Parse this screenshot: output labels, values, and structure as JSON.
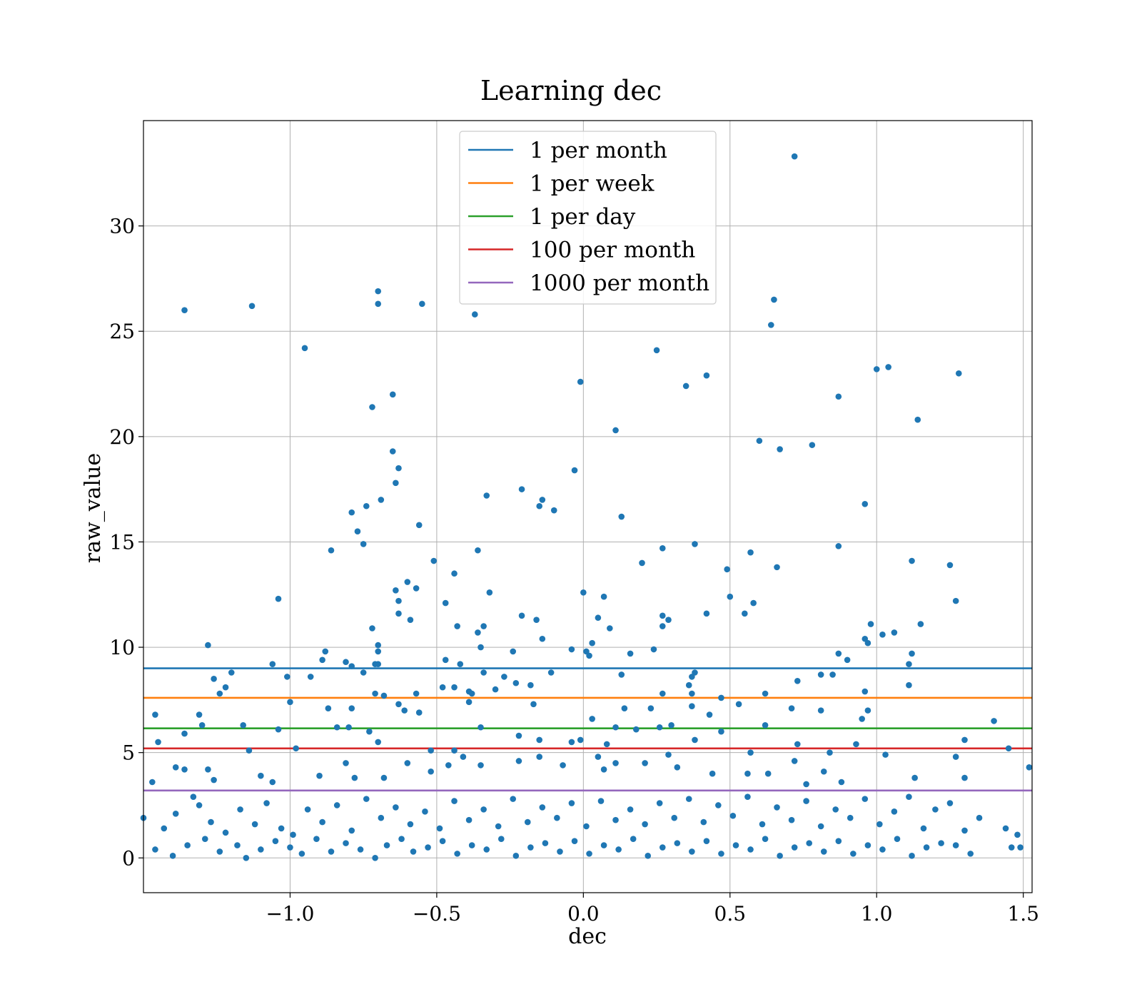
{
  "chart_data": {
    "type": "scatter",
    "title": "Learning dec",
    "xlabel": "dec",
    "ylabel": "raw_value",
    "xlim": [
      -1.5,
      1.53
    ],
    "ylim": [
      -1.65,
      35.0
    ],
    "grid": true,
    "legend_position": "top-center",
    "x_ticks": [
      -1.0,
      -0.5,
      0.0,
      0.5,
      1.0,
      1.5
    ],
    "x_tick_labels": [
      "−1.0",
      "−0.5",
      "0.0",
      "0.5",
      "1.0",
      "1.5"
    ],
    "y_ticks": [
      0,
      5,
      10,
      15,
      20,
      25,
      30
    ],
    "y_tick_labels": [
      "0",
      "5",
      "10",
      "15",
      "20",
      "25",
      "30"
    ],
    "point_color": "#1f77b4",
    "reference_lines": [
      {
        "name": "1 per month",
        "y": 9.0,
        "color": "#1f77b4"
      },
      {
        "name": "1 per week",
        "y": 7.6,
        "color": "#ff7f0e"
      },
      {
        "name": "1 per day",
        "y": 6.15,
        "color": "#2ca02c"
      },
      {
        "name": "100 per month",
        "y": 5.2,
        "color": "#d62728"
      },
      {
        "name": "1000 per month",
        "y": 3.2,
        "color": "#9467bd"
      }
    ],
    "points": [
      [
        -1.36,
        26.0
      ],
      [
        -1.13,
        26.2
      ],
      [
        -0.7,
        26.9
      ],
      [
        -0.7,
        26.3
      ],
      [
        -0.55,
        26.3
      ],
      [
        -0.37,
        25.8
      ],
      [
        -0.95,
        24.2
      ],
      [
        0.25,
        24.1
      ],
      [
        0.72,
        33.3
      ],
      [
        0.65,
        26.5
      ],
      [
        0.64,
        25.3
      ],
      [
        -0.01,
        22.6
      ],
      [
        0.35,
        22.4
      ],
      [
        0.42,
        22.9
      ],
      [
        1.0,
        23.2
      ],
      [
        1.04,
        23.3
      ],
      [
        1.28,
        23.0
      ],
      [
        -0.65,
        22.0
      ],
      [
        -0.72,
        21.4
      ],
      [
        0.11,
        20.3
      ],
      [
        0.87,
        21.9
      ],
      [
        1.14,
        20.8
      ],
      [
        -0.65,
        19.3
      ],
      [
        0.6,
        19.8
      ],
      [
        0.67,
        19.4
      ],
      [
        0.78,
        19.6
      ],
      [
        -0.63,
        18.5
      ],
      [
        -0.03,
        18.4
      ],
      [
        -0.64,
        17.8
      ],
      [
        -0.69,
        17.0
      ],
      [
        -0.33,
        17.2
      ],
      [
        -0.21,
        17.5
      ],
      [
        -0.14,
        17.0
      ],
      [
        -0.15,
        16.7
      ],
      [
        -0.1,
        16.5
      ],
      [
        -0.74,
        16.7
      ],
      [
        -0.79,
        16.4
      ],
      [
        0.96,
        16.8
      ],
      [
        0.13,
        16.2
      ],
      [
        -0.56,
        15.8
      ],
      [
        -0.77,
        15.5
      ],
      [
        -0.75,
        14.9
      ],
      [
        -0.86,
        14.6
      ],
      [
        -0.36,
        14.6
      ],
      [
        0.27,
        14.7
      ],
      [
        0.38,
        14.9
      ],
      [
        0.57,
        14.5
      ],
      [
        0.87,
        14.8
      ],
      [
        -0.51,
        14.1
      ],
      [
        0.2,
        14.0
      ],
      [
        -0.44,
        13.5
      ],
      [
        0.49,
        13.7
      ],
      [
        0.66,
        13.8
      ],
      [
        1.12,
        14.1
      ],
      [
        1.25,
        13.9
      ],
      [
        -0.6,
        13.1
      ],
      [
        -0.64,
        12.7
      ],
      [
        -0.57,
        12.8
      ],
      [
        -0.32,
        12.6
      ],
      [
        0.0,
        12.6
      ],
      [
        -1.04,
        12.3
      ],
      [
        -0.47,
        12.1
      ],
      [
        -0.63,
        12.2
      ],
      [
        0.07,
        12.4
      ],
      [
        0.5,
        12.4
      ],
      [
        0.58,
        12.1
      ],
      [
        1.27,
        12.2
      ],
      [
        -0.63,
        11.6
      ],
      [
        -0.59,
        11.3
      ],
      [
        -0.21,
        11.5
      ],
      [
        -0.16,
        11.3
      ],
      [
        0.05,
        11.4
      ],
      [
        0.27,
        11.5
      ],
      [
        0.29,
        11.3
      ],
      [
        0.42,
        11.6
      ],
      [
        0.55,
        11.6
      ],
      [
        0.98,
        11.1
      ],
      [
        -1.28,
        10.1
      ],
      [
        -0.72,
        10.9
      ],
      [
        -0.43,
        11.0
      ],
      [
        -0.34,
        11.0
      ],
      [
        -0.36,
        10.7
      ],
      [
        -0.14,
        10.4
      ],
      [
        0.09,
        10.9
      ],
      [
        0.27,
        11.0
      ],
      [
        0.96,
        10.4
      ],
      [
        1.02,
        10.6
      ],
      [
        1.06,
        10.7
      ],
      [
        1.15,
        11.1
      ],
      [
        -0.7,
        10.1
      ],
      [
        -0.7,
        9.8
      ],
      [
        -0.35,
        10.0
      ],
      [
        -0.04,
        9.9
      ],
      [
        0.03,
        10.2
      ],
      [
        0.01,
        9.8
      ],
      [
        -0.88,
        9.8
      ],
      [
        -0.89,
        9.4
      ],
      [
        -0.81,
        9.3
      ],
      [
        -0.79,
        9.1
      ],
      [
        -0.71,
        9.2
      ],
      [
        -0.7,
        9.2
      ],
      [
        -0.47,
        9.4
      ],
      [
        -0.42,
        9.2
      ],
      [
        -0.24,
        9.8
      ],
      [
        0.02,
        9.6
      ],
      [
        0.16,
        9.7
      ],
      [
        0.24,
        9.9
      ],
      [
        0.87,
        9.7
      ],
      [
        0.9,
        9.4
      ],
      [
        0.97,
        10.2
      ],
      [
        1.11,
        9.2
      ],
      [
        1.12,
        9.7
      ],
      [
        -1.2,
        8.8
      ],
      [
        -1.06,
        9.2
      ],
      [
        -0.93,
        8.6
      ],
      [
        -0.75,
        8.8
      ],
      [
        -0.34,
        8.8
      ],
      [
        -0.27,
        8.6
      ],
      [
        -0.23,
        8.3
      ],
      [
        -0.18,
        8.2
      ],
      [
        -0.11,
        8.8
      ],
      [
        0.13,
        8.7
      ],
      [
        0.38,
        8.8
      ],
      [
        0.37,
        8.6
      ],
      [
        0.73,
        8.4
      ],
      [
        0.81,
        8.7
      ],
      [
        0.85,
        8.7
      ],
      [
        -1.26,
        8.5
      ],
      [
        -1.22,
        8.1
      ],
      [
        -1.01,
        8.6
      ],
      [
        -0.48,
        8.1
      ],
      [
        -0.44,
        8.1
      ],
      [
        -0.39,
        7.9
      ],
      [
        -0.38,
        7.8
      ],
      [
        -0.3,
        8.0
      ],
      [
        -0.17,
        7.3
      ],
      [
        0.27,
        7.8
      ],
      [
        0.36,
        8.2
      ],
      [
        0.37,
        7.8
      ],
      [
        0.62,
        7.8
      ],
      [
        0.96,
        7.9
      ],
      [
        1.11,
        8.2
      ],
      [
        -1.46,
        6.8
      ],
      [
        -1.31,
        6.8
      ],
      [
        -1.24,
        7.8
      ],
      [
        -1.0,
        7.4
      ],
      [
        -0.87,
        7.1
      ],
      [
        -0.79,
        7.1
      ],
      [
        -0.71,
        7.8
      ],
      [
        -0.68,
        7.7
      ],
      [
        -0.63,
        7.3
      ],
      [
        -0.57,
        7.8
      ],
      [
        -0.39,
        7.4
      ],
      [
        0.14,
        7.1
      ],
      [
        0.23,
        7.1
      ],
      [
        0.37,
        7.2
      ],
      [
        0.43,
        6.8
      ],
      [
        0.47,
        7.6
      ],
      [
        0.53,
        7.3
      ],
      [
        0.71,
        7.1
      ],
      [
        0.81,
        7.0
      ],
      [
        0.97,
        7.0
      ],
      [
        -1.3,
        6.3
      ],
      [
        -1.16,
        6.3
      ],
      [
        -1.04,
        6.1
      ],
      [
        -0.84,
        6.2
      ],
      [
        -0.8,
        6.2
      ],
      [
        -0.73,
        6.0
      ],
      [
        -0.61,
        7.0
      ],
      [
        -0.56,
        6.9
      ],
      [
        -0.35,
        6.2
      ],
      [
        0.03,
        6.6
      ],
      [
        0.11,
        6.2
      ],
      [
        0.18,
        6.1
      ],
      [
        0.26,
        6.2
      ],
      [
        0.3,
        6.3
      ],
      [
        0.47,
        6.0
      ],
      [
        0.62,
        6.3
      ],
      [
        0.95,
        6.6
      ],
      [
        1.4,
        6.5
      ],
      [
        -1.36,
        5.9
      ],
      [
        -1.45,
        5.5
      ],
      [
        -1.14,
        5.1
      ],
      [
        -0.98,
        5.2
      ],
      [
        -0.7,
        5.5
      ],
      [
        -0.52,
        5.1
      ],
      [
        -0.44,
        5.1
      ],
      [
        -0.22,
        5.8
      ],
      [
        -0.15,
        5.6
      ],
      [
        -0.04,
        5.5
      ],
      [
        -0.01,
        5.6
      ],
      [
        0.08,
        5.4
      ],
      [
        0.38,
        5.6
      ],
      [
        0.57,
        5.0
      ],
      [
        0.73,
        5.4
      ],
      [
        0.84,
        5.0
      ],
      [
        0.93,
        5.4
      ],
      [
        1.03,
        4.9
      ],
      [
        1.3,
        5.6
      ],
      [
        1.45,
        5.2
      ],
      [
        -1.47,
        3.6
      ],
      [
        -1.39,
        4.3
      ],
      [
        -1.36,
        4.2
      ],
      [
        -1.28,
        4.2
      ],
      [
        -1.26,
        3.7
      ],
      [
        -1.1,
        3.9
      ],
      [
        -1.06,
        3.6
      ],
      [
        -0.9,
        3.9
      ],
      [
        -0.81,
        4.5
      ],
      [
        -0.78,
        3.8
      ],
      [
        -0.68,
        3.8
      ],
      [
        -0.6,
        4.5
      ],
      [
        -0.52,
        4.1
      ],
      [
        -0.46,
        4.4
      ],
      [
        -0.41,
        4.8
      ],
      [
        -0.35,
        4.4
      ],
      [
        -0.22,
        4.6
      ],
      [
        -0.15,
        4.8
      ],
      [
        -0.07,
        4.4
      ],
      [
        0.05,
        4.8
      ],
      [
        0.07,
        4.2
      ],
      [
        0.11,
        4.5
      ],
      [
        0.21,
        4.5
      ],
      [
        0.29,
        4.9
      ],
      [
        0.32,
        4.3
      ],
      [
        0.44,
        4.0
      ],
      [
        0.56,
        4.0
      ],
      [
        0.63,
        4.0
      ],
      [
        0.72,
        4.6
      ],
      [
        0.76,
        3.5
      ],
      [
        0.82,
        4.1
      ],
      [
        0.88,
        3.6
      ],
      [
        1.13,
        3.8
      ],
      [
        1.27,
        4.8
      ],
      [
        1.3,
        3.8
      ],
      [
        1.52,
        4.3
      ],
      [
        -1.5,
        1.9
      ],
      [
        -1.43,
        1.4
      ],
      [
        -1.39,
        2.1
      ],
      [
        -1.33,
        2.9
      ],
      [
        -1.31,
        2.5
      ],
      [
        -1.27,
        1.7
      ],
      [
        -1.22,
        1.2
      ],
      [
        -1.17,
        2.3
      ],
      [
        -1.12,
        1.6
      ],
      [
        -1.08,
        2.6
      ],
      [
        -1.03,
        1.4
      ],
      [
        -0.99,
        1.1
      ],
      [
        -0.94,
        2.3
      ],
      [
        -0.89,
        1.7
      ],
      [
        -0.84,
        2.5
      ],
      [
        -0.79,
        1.3
      ],
      [
        -0.74,
        2.8
      ],
      [
        -0.69,
        1.9
      ],
      [
        -0.64,
        2.4
      ],
      [
        -0.59,
        1.6
      ],
      [
        -0.54,
        2.2
      ],
      [
        -0.49,
        1.4
      ],
      [
        -0.44,
        2.7
      ],
      [
        -0.39,
        1.8
      ],
      [
        -0.34,
        2.3
      ],
      [
        -0.29,
        1.5
      ],
      [
        -0.24,
        2.8
      ],
      [
        -0.19,
        1.7
      ],
      [
        -0.14,
        2.4
      ],
      [
        -0.09,
        1.9
      ],
      [
        -0.04,
        2.6
      ],
      [
        0.01,
        1.5
      ],
      [
        0.06,
        2.7
      ],
      [
        0.11,
        1.8
      ],
      [
        0.16,
        2.3
      ],
      [
        0.21,
        1.6
      ],
      [
        0.26,
        2.6
      ],
      [
        0.31,
        1.9
      ],
      [
        0.36,
        2.8
      ],
      [
        0.41,
        1.7
      ],
      [
        0.46,
        2.5
      ],
      [
        0.51,
        2.0
      ],
      [
        0.56,
        2.9
      ],
      [
        0.61,
        1.6
      ],
      [
        0.66,
        2.4
      ],
      [
        0.71,
        1.8
      ],
      [
        0.76,
        2.7
      ],
      [
        0.81,
        1.5
      ],
      [
        0.86,
        2.3
      ],
      [
        0.91,
        1.9
      ],
      [
        0.96,
        2.8
      ],
      [
        1.01,
        1.6
      ],
      [
        1.06,
        2.2
      ],
      [
        1.11,
        2.9
      ],
      [
        1.16,
        1.4
      ],
      [
        1.2,
        2.3
      ],
      [
        1.25,
        2.6
      ],
      [
        1.3,
        1.3
      ],
      [
        1.35,
        1.9
      ],
      [
        1.44,
        1.4
      ],
      [
        1.48,
        1.1
      ],
      [
        -1.46,
        0.4
      ],
      [
        -1.4,
        0.1
      ],
      [
        -1.35,
        0.6
      ],
      [
        -1.29,
        0.9
      ],
      [
        -1.24,
        0.3
      ],
      [
        -1.18,
        0.6
      ],
      [
        -1.15,
        0.0
      ],
      [
        -1.1,
        0.4
      ],
      [
        -1.05,
        0.8
      ],
      [
        -1.0,
        0.5
      ],
      [
        -0.96,
        0.2
      ],
      [
        -0.91,
        0.9
      ],
      [
        -0.86,
        0.3
      ],
      [
        -0.81,
        0.7
      ],
      [
        -0.76,
        0.4
      ],
      [
        -0.71,
        0.0
      ],
      [
        -0.67,
        0.6
      ],
      [
        -0.62,
        0.9
      ],
      [
        -0.58,
        0.3
      ],
      [
        -0.53,
        0.5
      ],
      [
        -0.48,
        0.8
      ],
      [
        -0.43,
        0.2
      ],
      [
        -0.38,
        0.6
      ],
      [
        -0.33,
        0.4
      ],
      [
        -0.28,
        0.9
      ],
      [
        -0.23,
        0.1
      ],
      [
        -0.18,
        0.5
      ],
      [
        -0.13,
        0.7
      ],
      [
        -0.08,
        0.3
      ],
      [
        -0.03,
        0.8
      ],
      [
        0.02,
        0.2
      ],
      [
        0.07,
        0.6
      ],
      [
        0.12,
        0.4
      ],
      [
        0.17,
        0.9
      ],
      [
        0.22,
        0.1
      ],
      [
        0.27,
        0.5
      ],
      [
        0.32,
        0.7
      ],
      [
        0.37,
        0.3
      ],
      [
        0.42,
        0.8
      ],
      [
        0.47,
        0.2
      ],
      [
        0.52,
        0.6
      ],
      [
        0.57,
        0.4
      ],
      [
        0.62,
        0.9
      ],
      [
        0.67,
        0.1
      ],
      [
        0.72,
        0.5
      ],
      [
        0.77,
        0.7
      ],
      [
        0.82,
        0.3
      ],
      [
        0.87,
        0.8
      ],
      [
        0.92,
        0.2
      ],
      [
        0.97,
        0.6
      ],
      [
        1.02,
        0.4
      ],
      [
        1.07,
        0.9
      ],
      [
        1.12,
        0.1
      ],
      [
        1.17,
        0.5
      ],
      [
        1.22,
        0.7
      ],
      [
        1.27,
        0.6
      ],
      [
        1.32,
        0.2
      ],
      [
        1.46,
        0.5
      ],
      [
        1.49,
        0.5
      ]
    ]
  }
}
